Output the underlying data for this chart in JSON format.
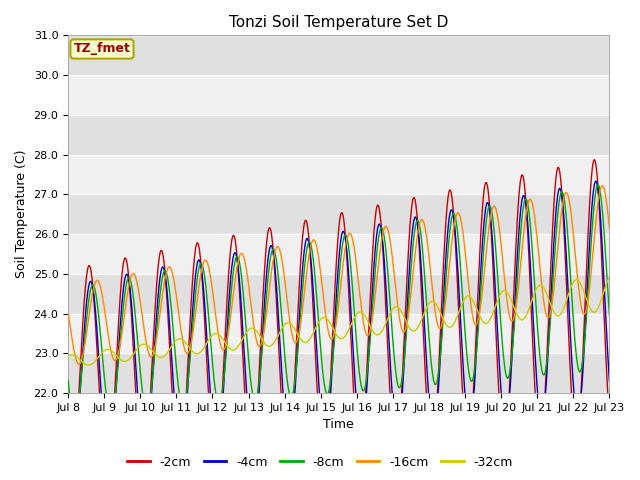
{
  "title": "Tonzi Soil Temperature Set D",
  "xlabel": "Time",
  "ylabel": "Soil Temperature (C)",
  "ylim": [
    22.0,
    31.0
  ],
  "yticks": [
    22.0,
    23.0,
    24.0,
    25.0,
    26.0,
    27.0,
    28.0,
    29.0,
    30.0,
    31.0
  ],
  "xtick_labels": [
    "Jul 8",
    "Jul 9",
    "Jul 10",
    "Jul 11",
    "Jul 12",
    "Jul 13",
    "Jul 14",
    "Jul 15",
    "Jul 16",
    "Jul 17",
    "Jul 18",
    "Jul 19",
    "Jul 20",
    "Jul 21",
    "Jul 22",
    "Jul 23"
  ],
  "legend_box_label": "TZ_fmet",
  "legend_box_color": "#ffffcc",
  "legend_box_edge": "#aaa800",
  "series_labels": [
    "-2cm",
    "-4cm",
    "-8cm",
    "-16cm",
    "-32cm"
  ],
  "series_colors": [
    "#cc0000",
    "#0000cc",
    "#00aa00",
    "#ff8800",
    "#cccc00"
  ],
  "fig_facecolor": "#ffffff",
  "plot_bg_light": "#f0f0f0",
  "plot_bg_dark": "#e0e0e0",
  "title_fontsize": 11,
  "axis_label_fontsize": 9,
  "tick_fontsize": 8,
  "legend_fontsize": 9
}
